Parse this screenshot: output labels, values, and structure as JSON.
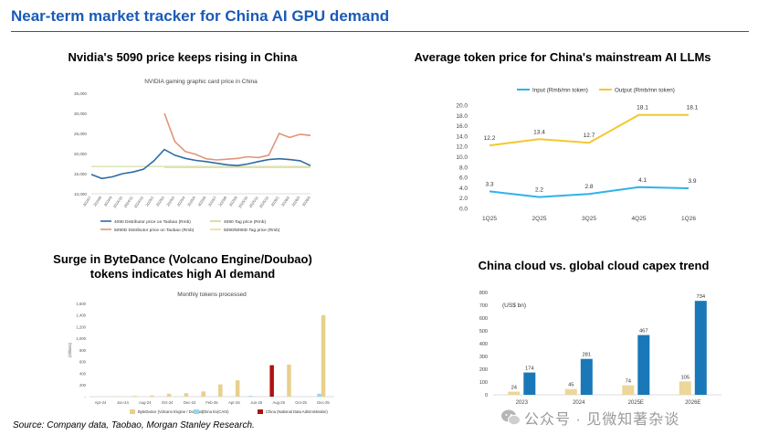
{
  "page": {
    "title": "Near-term market tracker for China AI GPU demand",
    "source": "Source: Company data, Taobao, Morgan Stanley Research.",
    "watermark": "公众号 · 见微知著杂谈"
  },
  "chart_data": [
    {
      "id": "nvidia-5090",
      "type": "line",
      "title": "Nvidia's 5090  price keeps rising in China",
      "subtitle": "NVIDIA gaming graphic card price in China",
      "ylim": [
        10000,
        35000
      ],
      "yticks": [
        "10,000",
        "15,000",
        "20,000",
        "25,000",
        "30,000",
        "35,000"
      ],
      "x": [
        "2024/7",
        "2024/8",
        "2024/9",
        "2024/10",
        "2024/11",
        "2024/12",
        "2025/1",
        "2025/2",
        "2025/3",
        "2025/4",
        "2025/5",
        "2025/6",
        "2025/7",
        "2025/8",
        "2025/9",
        "2025/10",
        "2025/11",
        "2025/12",
        "2026/1",
        "2026/2",
        "2026/3",
        "2026/4"
      ],
      "series": [
        {
          "name": "4090 Distributor price on Taobao (Rmb)",
          "color": "#2e6ca4",
          "values": [
            14800,
            13800,
            14200,
            15000,
            15400,
            16100,
            18200,
            21000,
            19600,
            18800,
            18300,
            18000,
            17600,
            17200,
            17000,
            17400,
            18000,
            18500,
            18700,
            18500,
            18200,
            17000
          ]
        },
        {
          "name": "4090 Tag price (Rmb)",
          "color": "#c8d890",
          "values": [
            16800,
            16800,
            16800,
            16800,
            16800,
            16800,
            16800,
            16800,
            16800,
            16800,
            16800,
            16800,
            16800,
            16800,
            16800,
            16800,
            16800,
            16800,
            16800,
            16800,
            16800,
            16800
          ]
        },
        {
          "name": "5090D Distributor price on Taobao (Rmb)",
          "color": "#e0957a",
          "values": [
            null,
            null,
            null,
            null,
            null,
            null,
            null,
            30000,
            23000,
            20500,
            19800,
            18700,
            18400,
            18600,
            18800,
            19200,
            19000,
            19600,
            25000,
            24000,
            24800,
            24500
          ]
        },
        {
          "name": "5090/5090D Tag price (Rmb)",
          "color": "#f0d890",
          "values": [
            null,
            null,
            null,
            null,
            null,
            null,
            null,
            16500,
            16500,
            16500,
            16500,
            16500,
            16500,
            16500,
            16500,
            16500,
            16500,
            16500,
            16500,
            16500,
            16500,
            16500
          ]
        }
      ]
    },
    {
      "id": "token-price",
      "type": "line",
      "title": "Average  token price for China's mainstream AI LLMs",
      "categories": [
        "1Q25",
        "2Q25",
        "3Q25",
        "4Q25",
        "1Q26"
      ],
      "ylim": [
        0,
        20
      ],
      "yticks": [
        "0.0",
        "2.0",
        "4.0",
        "6.0",
        "8.0",
        "10.0",
        "12.0",
        "14.0",
        "16.0",
        "18.0",
        "20.0"
      ],
      "series": [
        {
          "name": "Input (Rmb/mn token)",
          "color": "#2fb3e8",
          "values": [
            3.3,
            2.2,
            2.8,
            4.1,
            3.9
          ],
          "labels": [
            "3.3",
            "2.2",
            "2.8",
            "4.1",
            "3.9"
          ]
        },
        {
          "name": "Output (Rmb/mn token)",
          "color": "#f2c830",
          "values": [
            12.2,
            13.4,
            12.7,
            18.1,
            18.1
          ],
          "labels": [
            "12.2",
            "13.4",
            "12.7",
            "18.1",
            "18.1"
          ]
        }
      ]
    },
    {
      "id": "bytedance-tokens",
      "type": "bar",
      "title": "Surge in ByteDance (Volcano Engine/Doubao) tokens indicates high AI demand",
      "subtitle": "Monthly tokens processed",
      "ylabel": "(trillions)",
      "ylim": [
        0,
        1600
      ],
      "yticks": [
        "-",
        "200",
        "400",
        "600",
        "800",
        "1,000",
        "1,200",
        "1,400",
        "1,600"
      ],
      "xticks": [
        "Apr-24",
        "Jun-24",
        "Aug-24",
        "Oct-24",
        "Dec-24",
        "Feb-25",
        "Apr-25",
        "Jun-25",
        "Aug-25",
        "Oct-25",
        "Dec-25"
      ],
      "series": [
        {
          "name": "ByteDance (Volcano Engine / Doubao)",
          "color": "#e8d08c",
          "values": [
            5,
            8,
            12,
            20,
            50,
            60,
            90,
            210,
            280,
            null,
            null,
            550,
            null,
            1400
          ]
        },
        {
          "name": "China Ex(CAIS)",
          "color": "#9ad4ec",
          "values": [
            null,
            null,
            null,
            null,
            null,
            null,
            null,
            null,
            null,
            12,
            null,
            null,
            null,
            50
          ]
        },
        {
          "name": "China (National Data Administration)",
          "color": "#b01010",
          "values": [
            null,
            null,
            null,
            null,
            null,
            null,
            null,
            null,
            null,
            null,
            540,
            null,
            null,
            null
          ]
        }
      ]
    },
    {
      "id": "cloud-capex",
      "type": "bar",
      "title": "China cloud vs. global cloud capex trend",
      "unit": "(US$ bn)",
      "ylim": [
        0,
        800
      ],
      "yticks": [
        "0",
        "100",
        "200",
        "300",
        "400",
        "500",
        "600",
        "700",
        "800"
      ],
      "categories": [
        "2023",
        "2024",
        "2025E",
        "2026E"
      ],
      "series": [
        {
          "name": "China cloud",
          "color": "#ecd69a",
          "values": [
            24,
            45,
            74,
            105
          ],
          "labels": [
            "24",
            "45",
            "74",
            "105"
          ]
        },
        {
          "name": "Global cloud",
          "color": "#1a78b8",
          "values": [
            174,
            281,
            467,
            734
          ],
          "labels": [
            "174",
            "281",
            "467",
            "734"
          ]
        }
      ]
    }
  ]
}
